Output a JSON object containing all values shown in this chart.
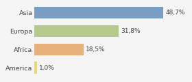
{
  "categories": [
    "Asia",
    "Europa",
    "Africa",
    "America"
  ],
  "values": [
    48.7,
    31.8,
    18.5,
    1.0
  ],
  "labels": [
    "48,7%",
    "31,8%",
    "18,5%",
    "1,0%"
  ],
  "bar_colors": [
    "#7b9ec4",
    "#b5c98a",
    "#e8b07a",
    "#e8d87a"
  ],
  "background_color": "#f5f5f5",
  "xlim": [
    0,
    58
  ],
  "bar_height": 0.65,
  "label_fontsize": 6.5,
  "tick_fontsize": 6.8
}
